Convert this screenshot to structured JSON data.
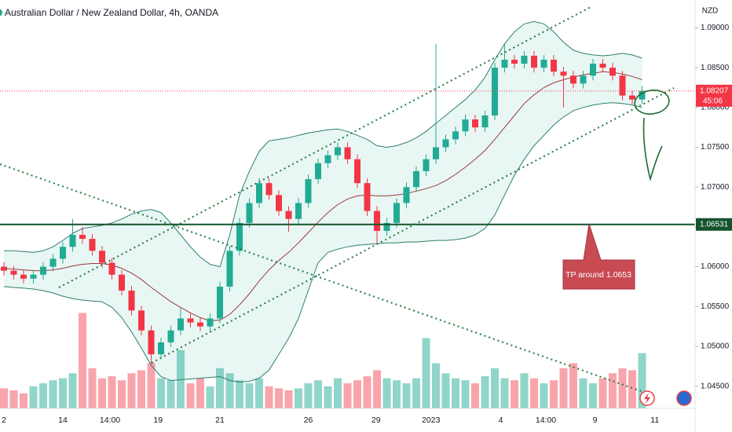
{
  "chart_data": {
    "type": "candlestick",
    "title": "Australian Dollar / New Zealand Dollar, 4h, OANDA",
    "currency": "NZD",
    "xlim": [
      -0.4,
      70.4
    ],
    "xticks": [
      {
        "value": 0,
        "label": "2"
      },
      {
        "value": 6,
        "label": "14"
      },
      {
        "value": 10.8,
        "label": "14:00"
      },
      {
        "value": 15.7,
        "label": "19"
      },
      {
        "value": 22,
        "label": "21"
      },
      {
        "value": 31,
        "label": "26"
      },
      {
        "value": 37.9,
        "label": "29"
      },
      {
        "value": 43.5,
        "label": "2023"
      },
      {
        "value": 50.6,
        "label": "4"
      },
      {
        "value": 55.2,
        "label": "14:00"
      },
      {
        "value": 60.2,
        "label": "9"
      },
      {
        "value": 66.3,
        "label": "11"
      }
    ],
    "ylim": [
      1.0422,
      1.0935
    ],
    "yticks": [
      {
        "value": 1.09,
        "label": "1.09000"
      },
      {
        "value": 1.085,
        "label": "1.08500"
      },
      {
        "value": 1.08,
        "label": "1.08000"
      },
      {
        "value": 1.075,
        "label": "1.07500"
      },
      {
        "value": 1.07,
        "label": "1.07000"
      },
      {
        "value": 1.065,
        "label": "1.06500"
      },
      {
        "value": 1.06,
        "label": "1.06000"
      },
      {
        "value": 1.055,
        "label": "1.05500"
      },
      {
        "value": 1.05,
        "label": "1.05000"
      },
      {
        "value": 1.045,
        "label": "1.04500"
      }
    ],
    "up_color": "#22ab94",
    "down_color": "#f23645",
    "open": [
      1.06,
      1.0595,
      1.059,
      1.0585,
      1.059,
      1.06,
      1.061,
      1.0625,
      1.064,
      1.0635,
      1.062,
      1.0605,
      1.059,
      1.057,
      1.0545,
      1.052,
      1.049,
      1.0505,
      1.052,
      1.0535,
      1.053,
      1.0525,
      1.0535,
      1.0575,
      1.062,
      1.0655,
      1.068,
      1.0705,
      1.069,
      1.067,
      1.066,
      1.068,
      1.071,
      1.073,
      1.074,
      1.075,
      1.0735,
      1.0705,
      1.067,
      1.0645,
      1.0655,
      1.068,
      1.07,
      1.072,
      1.0735,
      1.075,
      1.076,
      1.077,
      1.0785,
      1.0775,
      1.079,
      1.085,
      1.086,
      1.0855,
      1.0865,
      1.085,
      1.086,
      1.0845,
      1.084,
      1.083,
      1.084,
      1.0855,
      1.085,
      1.084,
      1.0815,
      1.081
    ],
    "high": [
      1.0606,
      1.0601,
      1.0596,
      1.0596,
      1.0606,
      1.0616,
      1.0631,
      1.066,
      1.065,
      1.0641,
      1.0626,
      1.0611,
      1.0596,
      1.0576,
      1.0551,
      1.0526,
      1.0511,
      1.0526,
      1.0548,
      1.0541,
      1.0536,
      1.0541,
      1.0581,
      1.0626,
      1.0661,
      1.0686,
      1.0711,
      1.0711,
      1.0696,
      1.0676,
      1.0686,
      1.0716,
      1.0736,
      1.0746,
      1.0756,
      1.0756,
      1.0741,
      1.0711,
      1.0676,
      1.0661,
      1.0686,
      1.0706,
      1.0726,
      1.0741,
      1.088,
      1.0766,
      1.0776,
      1.0791,
      1.0791,
      1.0796,
      1.0856,
      1.088,
      1.0866,
      1.0871,
      1.0871,
      1.0866,
      1.0866,
      1.0851,
      1.0846,
      1.0846,
      1.0861,
      1.0861,
      1.0856,
      1.0846,
      1.0821,
      1.0827
    ],
    "low": [
      1.0589,
      1.0584,
      1.0579,
      1.0579,
      1.0584,
      1.0594,
      1.0604,
      1.0619,
      1.0629,
      1.0614,
      1.0599,
      1.0584,
      1.0564,
      1.0539,
      1.0514,
      1.0478,
      1.0484,
      1.0499,
      1.0514,
      1.0524,
      1.0519,
      1.0519,
      1.0529,
      1.0569,
      1.0614,
      1.0649,
      1.0674,
      1.0684,
      1.0664,
      1.0644,
      1.0654,
      1.0674,
      1.0704,
      1.0724,
      1.0734,
      1.0729,
      1.0699,
      1.0664,
      1.0629,
      1.0639,
      1.0649,
      1.0674,
      1.0694,
      1.0714,
      1.0729,
      1.0744,
      1.0754,
      1.0764,
      1.0769,
      1.0769,
      1.0784,
      1.0844,
      1.0849,
      1.0849,
      1.0844,
      1.0844,
      1.0839,
      1.08,
      1.0824,
      1.0824,
      1.0834,
      1.0844,
      1.0834,
      1.0809,
      1.0804,
      1.0804
    ],
    "close": [
      1.0595,
      1.059,
      1.0585,
      1.059,
      1.06,
      1.061,
      1.0625,
      1.064,
      1.0635,
      1.062,
      1.0605,
      1.059,
      1.057,
      1.0545,
      1.052,
      1.049,
      1.0505,
      1.052,
      1.0535,
      1.053,
      1.0525,
      1.0535,
      1.0575,
      1.062,
      1.0655,
      1.068,
      1.0705,
      1.069,
      1.067,
      1.066,
      1.068,
      1.071,
      1.073,
      1.074,
      1.075,
      1.0735,
      1.0705,
      1.067,
      1.0645,
      1.0655,
      1.068,
      1.07,
      1.072,
      1.0735,
      1.075,
      1.076,
      1.077,
      1.0785,
      1.0775,
      1.079,
      1.085,
      1.086,
      1.0855,
      1.0865,
      1.085,
      1.086,
      1.0845,
      1.084,
      1.083,
      1.084,
      1.0855,
      1.085,
      1.084,
      1.0815,
      1.081,
      1.08207
    ],
    "volume": [
      20,
      18,
      15,
      22,
      25,
      28,
      30,
      35,
      95,
      40,
      30,
      32,
      28,
      35,
      38,
      45,
      30,
      28,
      58,
      25,
      30,
      22,
      40,
      35,
      28,
      25,
      30,
      22,
      20,
      18,
      20,
      25,
      28,
      22,
      30,
      25,
      28,
      32,
      38,
      30,
      28,
      25,
      30,
      70,
      45,
      35,
      30,
      28,
      25,
      32,
      40,
      30,
      28,
      35,
      30,
      25,
      28,
      40,
      45,
      30,
      25,
      30,
      35,
      40,
      38,
      55
    ],
    "ma": [
      1.0598,
      1.0597,
      1.0596,
      1.0595,
      1.0595,
      1.0596,
      1.0598,
      1.0601,
      1.0603,
      1.0604,
      1.0604,
      1.0602,
      1.0598,
      1.0592,
      1.0584,
      1.0574,
      1.0565,
      1.0556,
      1.0549,
      1.0542,
      1.0536,
      1.0532,
      1.0533,
      1.054,
      1.0552,
      1.0566,
      1.0582,
      1.0596,
      1.0608,
      1.0618,
      1.063,
      1.0643,
      1.0656,
      1.0668,
      1.0678,
      1.0685,
      1.0689,
      1.069,
      1.0689,
      1.0689,
      1.069,
      1.0692,
      1.0695,
      1.0698,
      1.0702,
      1.0708,
      1.0716,
      1.0725,
      1.0735,
      1.0746,
      1.076,
      1.0775,
      1.079,
      1.0805,
      1.0816,
      1.0825,
      1.0831,
      1.0835,
      1.0838,
      1.0841,
      1.0843,
      1.0845,
      1.0844,
      1.0842,
      1.0839,
      1.0835
    ],
    "bb_upper": [
      1.062,
      1.062,
      1.0619,
      1.0618,
      1.062,
      1.0625,
      1.0633,
      1.0642,
      1.0648,
      1.065,
      1.0652,
      1.0655,
      1.066,
      1.0666,
      1.067,
      1.0672,
      1.0668,
      1.0655,
      1.064,
      1.0625,
      1.0612,
      1.0603,
      1.06,
      1.064,
      1.069,
      1.072,
      1.0745,
      1.0758,
      1.076,
      1.0762,
      1.0765,
      1.0768,
      1.077,
      1.0772,
      1.0773,
      1.077,
      1.0765,
      1.076,
      1.0752,
      1.075,
      1.0752,
      1.0756,
      1.0762,
      1.077,
      1.078,
      1.079,
      1.08,
      1.081,
      1.0822,
      1.0838,
      1.086,
      1.088,
      1.0895,
      1.0905,
      1.0908,
      1.0905,
      1.0895,
      1.0882,
      1.0872,
      1.0868,
      1.0866,
      1.0865,
      1.0866,
      1.0868,
      1.0866,
      1.0862
    ],
    "bb_lower": [
      1.0575,
      1.0574,
      1.0573,
      1.0572,
      1.057,
      1.0567,
      1.0563,
      1.056,
      1.0558,
      1.0557,
      1.0556,
      1.0549,
      1.0536,
      1.0518,
      1.0498,
      1.0476,
      1.0462,
      1.0457,
      1.0458,
      1.0459,
      1.046,
      1.0461,
      1.0462,
      1.0457,
      1.0455,
      1.0456,
      1.046,
      1.047,
      1.049,
      1.051,
      1.0535,
      1.057,
      1.0605,
      1.0618,
      1.0622,
      1.0625,
      1.0627,
      1.0628,
      1.0629,
      1.063,
      1.063,
      1.0631,
      1.0631,
      1.0632,
      1.0633,
      1.0633,
      1.0634,
      1.0636,
      1.064,
      1.0648,
      1.0665,
      1.069,
      1.0715,
      1.0735,
      1.0752,
      1.0765,
      1.0778,
      1.0788,
      1.0796,
      1.08,
      1.0803,
      1.0805,
      1.0806,
      1.0805,
      1.0803,
      1.08
    ],
    "last_price": 1.08207,
    "countdown": "45:06",
    "level": 1.06531,
    "annotation": "TP around 1.0653"
  }
}
